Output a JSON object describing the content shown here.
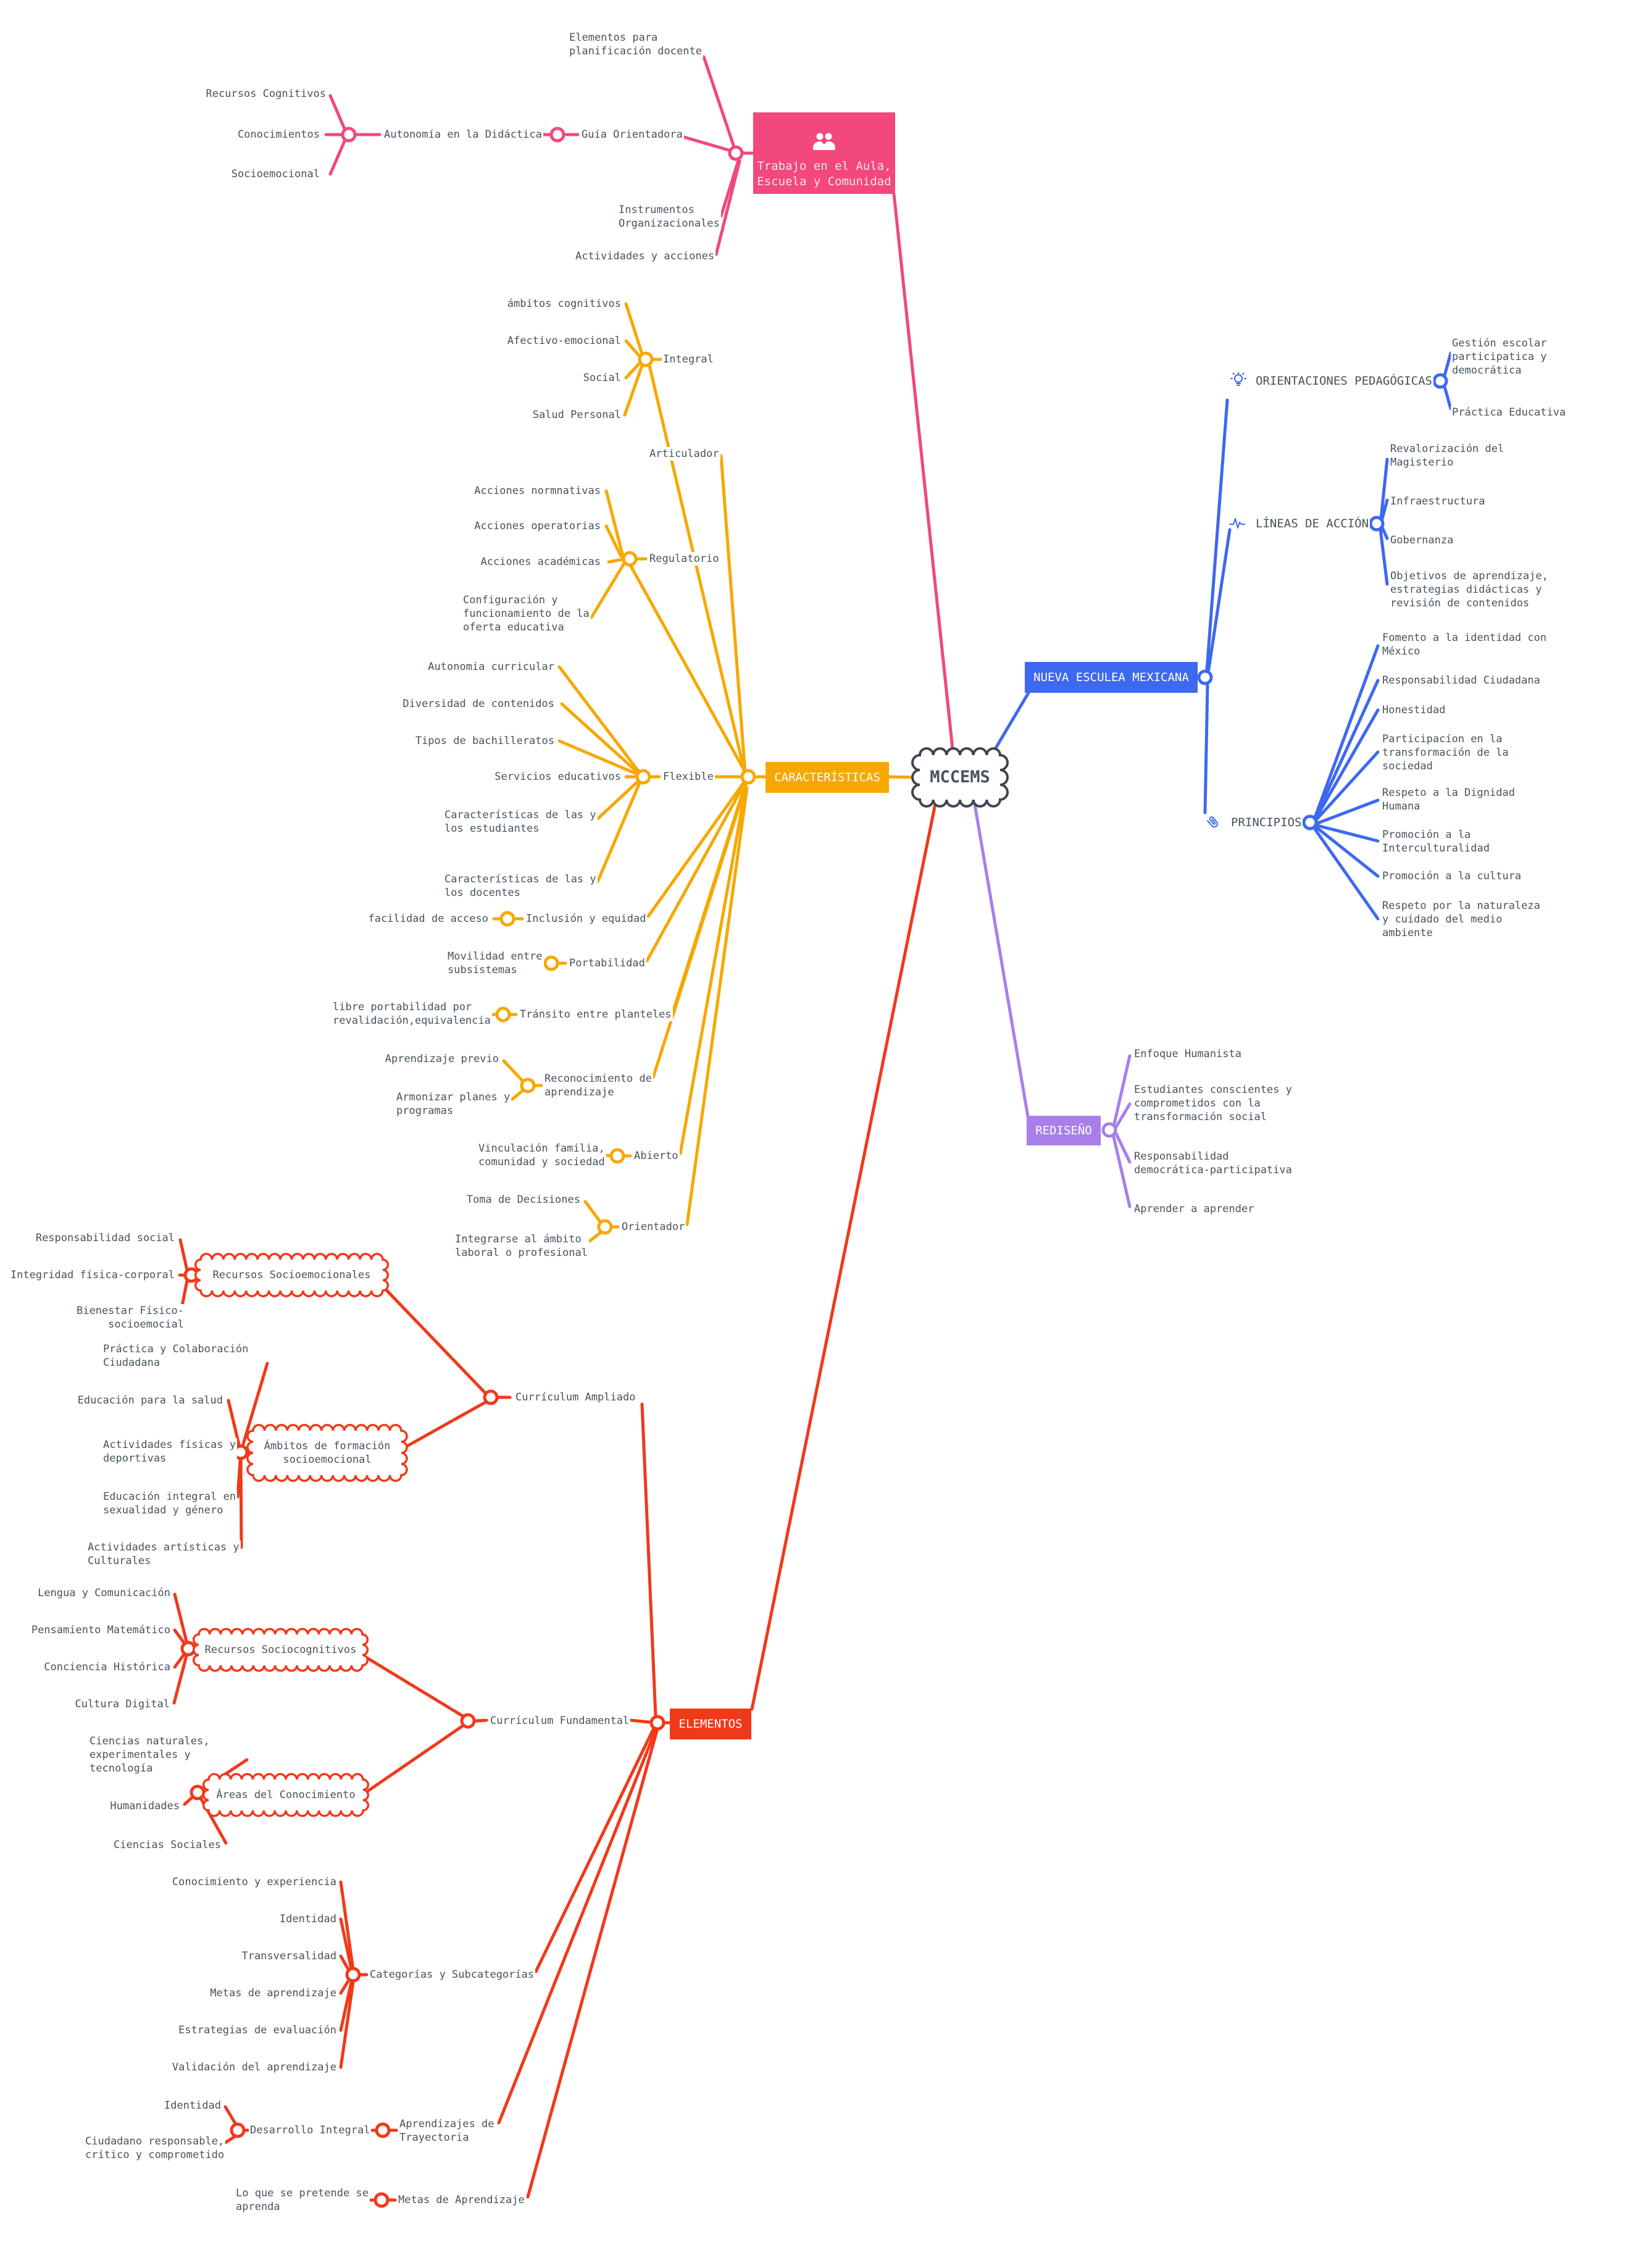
{
  "colors": {
    "pink": "#F2487C",
    "orange": "#F6A800",
    "blue": "#3D68F0",
    "purple": "#A87FE8",
    "red": "#F0391A",
    "text": "#47525D"
  },
  "root": {
    "label": "MCCEMS"
  },
  "trabajo": {
    "box": "Trabajo en el Aula,\nEscuela y Comunidad",
    "elementos_planificacion": "Elementos para\nplanificación docente",
    "recursos_cognitivos": "Recursos Cognitivos",
    "conocimientos": "Conocimientos",
    "socioemocional": "Socioemocional",
    "autonomia": "Autonomía en la Didáctica",
    "guia": "Guía Orientadora",
    "instrumentos": "Instrumentos\nOrganizacionales",
    "actividades": "Actividades y acciones"
  },
  "caracteristicas": {
    "box": "CARACTERÍSTICAS",
    "integral": "Integral",
    "ambitos_cognitivos": "ámbitos cognitivos",
    "afectivo": "Afectivo-emocional",
    "social": "Social",
    "salud_personal": "Salud Personal",
    "articulador": "Articulador",
    "regulatorio": "Regulatorio",
    "acciones_normativas": "Acciones normnativas",
    "acciones_operatorias": "Acciones operatorias",
    "acciones_academicas": "Acciones académicas",
    "configuracion": "Configuración y\nfuncionamiento de la\noferta educativa",
    "flexible": "Flexible",
    "autonomia_curricular": "Autonomia curricular",
    "diversidad": "Diversidad de contenidos",
    "tipos_bachilleratos": "Tipos de bachilleratos",
    "servicios_educativos": "Servicios educativos",
    "caracteristicas_estudiantes": "Características de las y\nlos estudiantes",
    "caracteristicas_docentes": "Características de las y\nlos docentes",
    "inclusion": "Inclusión y equidad",
    "facilidad_acceso": "facilidad de acceso",
    "portabilidad": "Portabilidad",
    "movilidad": "Movilidad entre\nsubsistemas",
    "transito": "Tránsito entre planteles",
    "libre_portabilidad": "libre portabilidad por\nrevalidación,equivalencia",
    "reconocimiento": "Reconocimiento de\naprendizaje",
    "aprendizaje_previo": "Aprendizaje previo",
    "armonizar": "Armonizar planes y\nprogramas",
    "abierto": "Abierto",
    "vinculacion": "Vinculación familia,\ncomunidad y sociedad",
    "orientador": "Orientador",
    "toma_decisiones": "Toma de Decisiones",
    "integrarse": "Integrarse al ámbito\nlaboral o profesional"
  },
  "nem": {
    "box": "NUEVA ESCULEA MEXICANA",
    "orientaciones": "ORIENTACIONES PEDAGÓGICAS",
    "gestion": "Gestión escolar\nparticipatica y\ndemocrática",
    "practica_educativa": "Práctica Educativa",
    "lineas": "LÍNEAS DE ACCIÓN",
    "revalorizacion": "Revalorización del\nMagisterio",
    "infraestructura": "Infraestructura",
    "gobernanza": "Gobernanza",
    "objetivos": "Objetivos de aprendizaje,\nestrategias didácticas y\nrevisión de contenidos",
    "principios": "PRINCIPIOS",
    "fomento": "Fomento a la identidad con\nMéxico",
    "responsabilidad_ciudadana": "Responsabilidad Ciudadana",
    "honestidad": "Honestidad",
    "participacion": "Participacíon en la\ntransformación de la\nsociedad",
    "respeto_dignidad": "Respeto a la Dignidad\nHumana",
    "promocion_interculturalidad": "Promoción a la\nInterculturalidad",
    "promocion_cultura": "Promoción a la cultura",
    "respeto_naturaleza": "Respeto por la naturaleza\ny cuidado del medio\nambiente"
  },
  "rediseno": {
    "box": "REDISEÑO",
    "enfoque": "Enfoque Humanista",
    "estudiantes": "Estudiantes conscientes y\ncomprometidos con la\ntransformación social",
    "responsabilidad": "Responsabilidad\ndemocrática-participativa",
    "aprender": "Aprender a aprender"
  },
  "elementos": {
    "box": "ELEMENTOS",
    "curriculum_ampliado": "Currículum Ampliado",
    "recursos_socioemocionales": "Recursos Socioemocionales",
    "responsabilidad_social": "Responsabilidad social",
    "integridad": "Integridad física-corporal",
    "bienestar": "Bienestar Físico-socioemocial",
    "ambitos_formacion": "Ámbitos de formación\nsocioemocional",
    "practica_colaboracion": "Práctica y Colaboración\nCiudadana",
    "educacion_salud": "Educación para la salud",
    "actividades_fisicas": "Actividades físicas y\ndeportivas",
    "educacion_integral": "Educación integral en\nsexualidad y género",
    "actividades_artisticas": "Actividades artísticas y\nCulturales",
    "curriculum_fundamental": "Currículum Fundamental",
    "recursos_sociocognitivos": "Recursos Sociocognitivos",
    "lengua": "Lengua y Comunicación",
    "pensamiento": "Pensamiento Matemático",
    "conciencia": "Conciencia Histórica",
    "cultura_digital": "Cultura Digital",
    "areas_conocimiento": "Áreas del Conocimiento",
    "ciencias_naturales": "Ciencias naturales,\nexperimentales y\ntecnología",
    "humanidades": "Humanidades",
    "ciencias_sociales": "Ciencias Sociales",
    "categorias": "Categorías y Subcategorías",
    "conocimiento_experiencia": "Conocimiento y experiencia",
    "identidad": "Identidad",
    "transversalidad": "Transversalidad",
    "metas_aprendizaje_cat": "Metas de aprendizaje",
    "estrategias_evaluacion": "Estrategias de evaluación",
    "validacion": "Validación del aprendizaje",
    "desarrollo_integral": "Desarrollo Integral",
    "identidad_di": "Identidad",
    "ciudadano": "Ciudadano responsable,\ncrítico y comprometido",
    "aprendizajes_trayectoria": "Aprendizajes de\nTrayectoria",
    "lo_que": "Lo que se pretende se\naprenda",
    "metas_aprendizaje": "Metas de Aprendizaje"
  }
}
